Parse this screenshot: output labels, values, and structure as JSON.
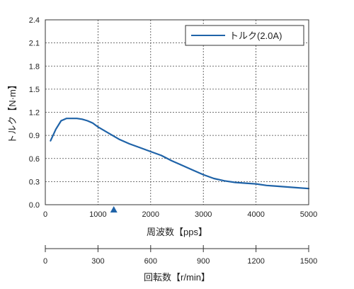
{
  "chart_data": {
    "type": "line",
    "x_axis": {
      "label": "周波数【pps】",
      "ticks": [
        0,
        1000,
        2000,
        3000,
        4000,
        5000
      ],
      "range": [
        0,
        5000
      ]
    },
    "secondary_x_axis": {
      "label": "回転数【r/min】",
      "ticks": [
        0,
        300,
        600,
        900,
        1200,
        1500
      ],
      "range": [
        0,
        1500
      ]
    },
    "y_axis": {
      "label": "トルク【N·m】",
      "ticks": [
        "0.0",
        "0.3",
        "0.6",
        "0.9",
        "1.2",
        "1.5",
        "1.8",
        "2.1",
        "2.4"
      ],
      "range": [
        0,
        2.4
      ]
    },
    "grid": true,
    "legend_position": "top-right",
    "marker": {
      "x": 1300,
      "shape": "triangle",
      "color": "#1f63a8"
    },
    "series": [
      {
        "name": "トルク(2.0A)",
        "color": "#1f63a8",
        "x": [
          100,
          200,
          300,
          400,
          500,
          600,
          700,
          800,
          900,
          1000,
          1200,
          1400,
          1600,
          1800,
          2000,
          2200,
          2400,
          2600,
          2800,
          3000,
          3200,
          3400,
          3600,
          3800,
          4000,
          4200,
          4400,
          4600,
          4800,
          5000
        ],
        "y": [
          0.83,
          0.98,
          1.09,
          1.12,
          1.12,
          1.12,
          1.11,
          1.09,
          1.06,
          1.01,
          0.93,
          0.85,
          0.79,
          0.74,
          0.69,
          0.64,
          0.57,
          0.51,
          0.45,
          0.39,
          0.34,
          0.31,
          0.29,
          0.28,
          0.27,
          0.25,
          0.24,
          0.23,
          0.22,
          0.21
        ]
      }
    ]
  }
}
